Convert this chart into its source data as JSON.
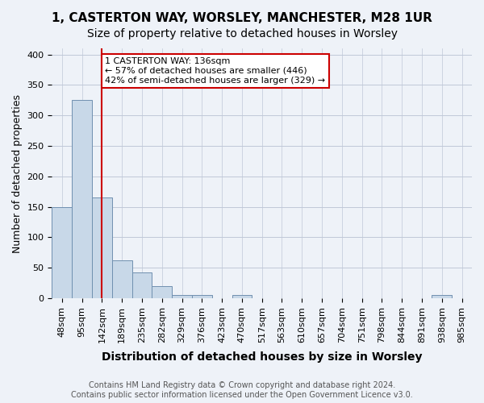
{
  "title": "1, CASTERTON WAY, WORSLEY, MANCHESTER, M28 1UR",
  "subtitle": "Size of property relative to detached houses in Worsley",
  "xlabel": "Distribution of detached houses by size in Worsley",
  "ylabel": "Number of detached properties",
  "footer_line1": "Contains HM Land Registry data © Crown copyright and database right 2024.",
  "footer_line2": "Contains public sector information licensed under the Open Government Licence v3.0.",
  "annotation_line1": "1 CASTERTON WAY: 136sqm",
  "annotation_line2": "← 57% of detached houses are smaller (446)",
  "annotation_line3": "42% of semi-detached houses are larger (329) →",
  "bin_labels": [
    "48sqm",
    "95sqm",
    "142sqm",
    "189sqm",
    "235sqm",
    "282sqm",
    "329sqm",
    "376sqm",
    "423sqm",
    "470sqm",
    "517sqm",
    "563sqm",
    "610sqm",
    "657sqm",
    "704sqm",
    "751sqm",
    "798sqm",
    "844sqm",
    "891sqm",
    "938sqm",
    "985sqm"
  ],
  "bar_values": [
    150,
    325,
    165,
    62,
    43,
    20,
    5,
    5,
    0,
    5,
    0,
    0,
    0,
    0,
    0,
    0,
    0,
    0,
    0,
    5,
    0
  ],
  "bar_color": "#c8d8e8",
  "bar_edge_color": "#7090b0",
  "property_line_x": 2,
  "property_line_color": "#cc0000",
  "annotation_box_color": "#cc0000",
  "ylim": [
    0,
    410
  ],
  "yticks": [
    0,
    50,
    100,
    150,
    200,
    250,
    300,
    350,
    400
  ],
  "background_color": "#eef2f8",
  "grid_color": "#c0c8d8",
  "title_fontsize": 11,
  "subtitle_fontsize": 10,
  "axis_label_fontsize": 9,
  "tick_fontsize": 8,
  "annotation_fontsize": 8,
  "footer_fontsize": 7
}
